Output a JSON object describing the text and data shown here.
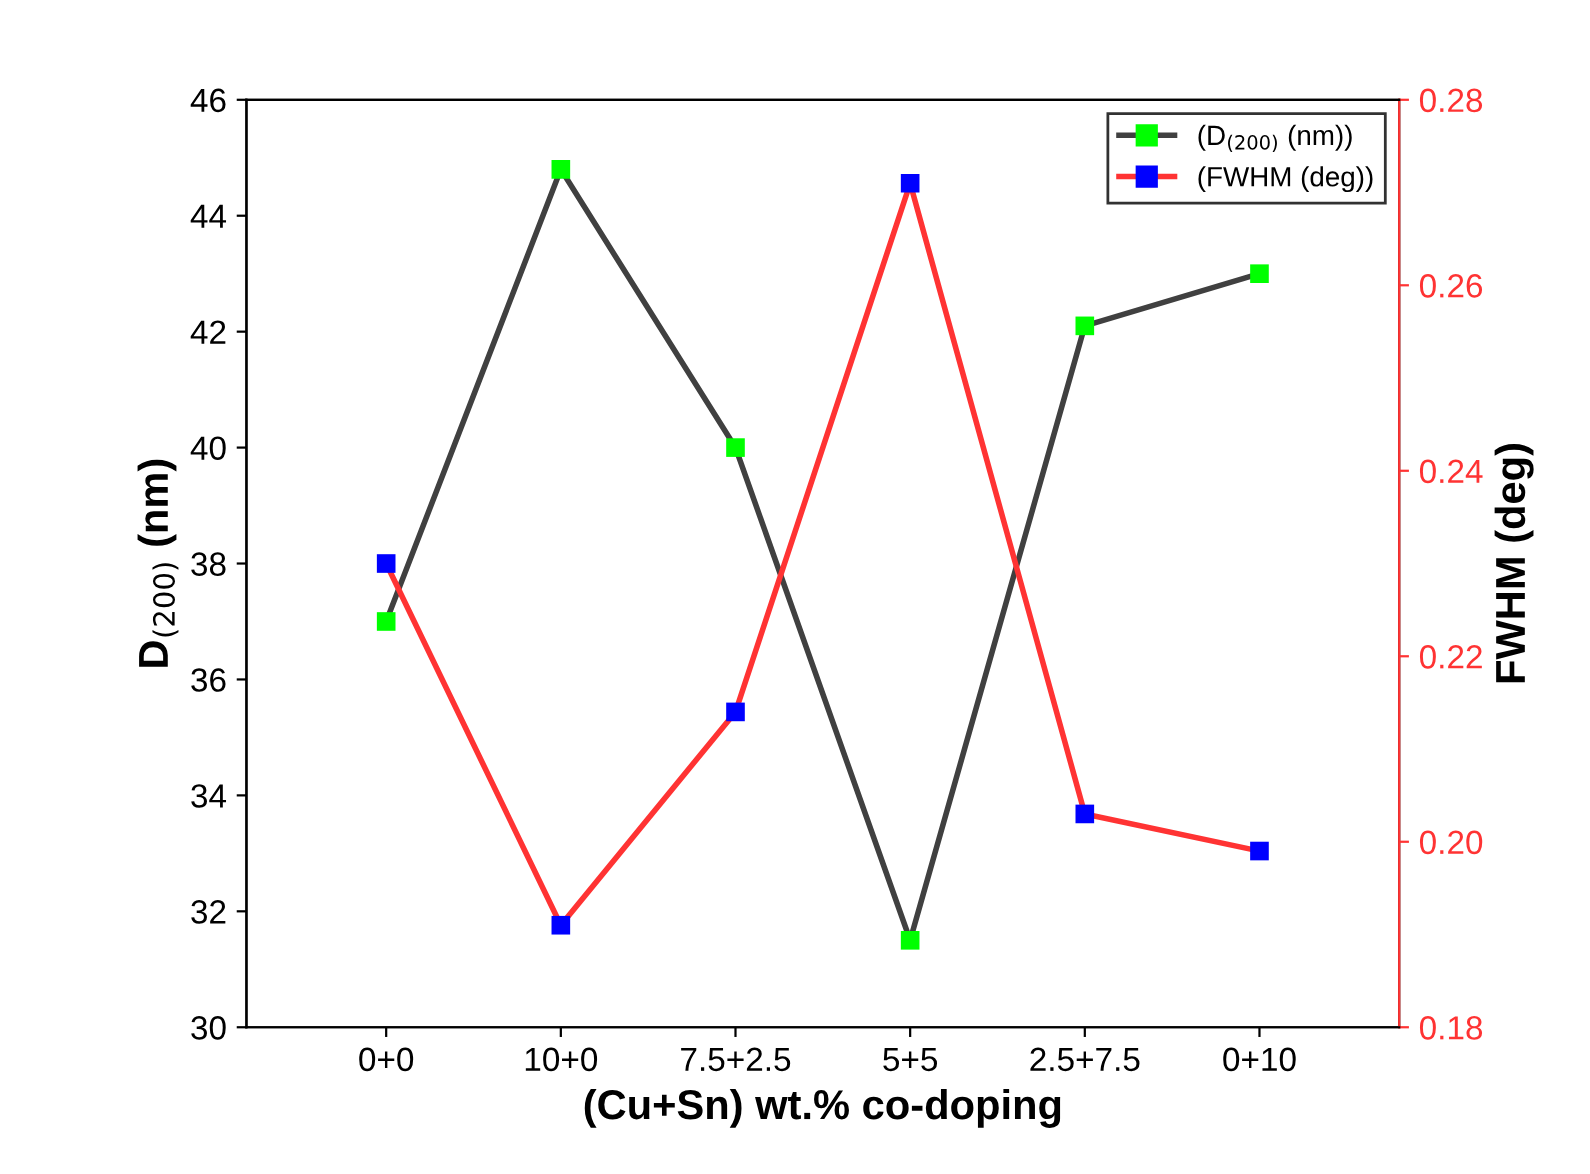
{
  "chart_data": {
    "type": "line",
    "xlabel": "(Cu+Sn) wt.% co-doping",
    "ylabel": "D$_{(200)}$ (nm)",
    "y2label": "FWHM (deg)",
    "categories": [
      "0+0",
      "10+0",
      "7.5+2.5",
      "5+5",
      "2.5+7.5",
      "0+10"
    ],
    "series": [
      {
        "name": "(D$_{(200)}$ (nm))",
        "color": "#404040",
        "colors": [
          "#00ff00",
          "#00ff00",
          "#00ff00",
          "#00ff00",
          "#00ff00",
          "#00ff00"
        ],
        "values": [
          37.0,
          44.8,
          40.0,
          31.5,
          42.1,
          43.0
        ]
      },
      {
        "name": "(FWHM (deg))",
        "color": "#ff3333",
        "colors": [
          "#0000ff",
          "#0000ff",
          "#0000ff",
          "#0000ff",
          "#0000ff",
          "#0000ff"
        ],
        "axis": "y2",
        "values": [
          0.23,
          0.191,
          0.214,
          0.271,
          0.203,
          0.199
        ]
      }
    ],
    "ylim": [
      30,
      46
    ],
    "yticks": [
      30,
      32,
      34,
      36,
      38,
      40,
      42,
      44,
      46
    ],
    "y2lim": [
      0.18,
      0.28
    ],
    "y2ticks": [
      {
        "value": 0.18,
        "label": "0.18"
      },
      {
        "value": 0.2,
        "label": "0.20"
      },
      {
        "value": 0.22,
        "label": "0.22"
      },
      {
        "value": 0.24,
        "label": "0.24"
      },
      {
        "value": 0.26,
        "label": "0.26"
      },
      {
        "value": 0.28,
        "label": "0.28"
      }
    ],
    "marker": "square",
    "line_style": "solid",
    "grid": false,
    "legend": "top right"
  }
}
